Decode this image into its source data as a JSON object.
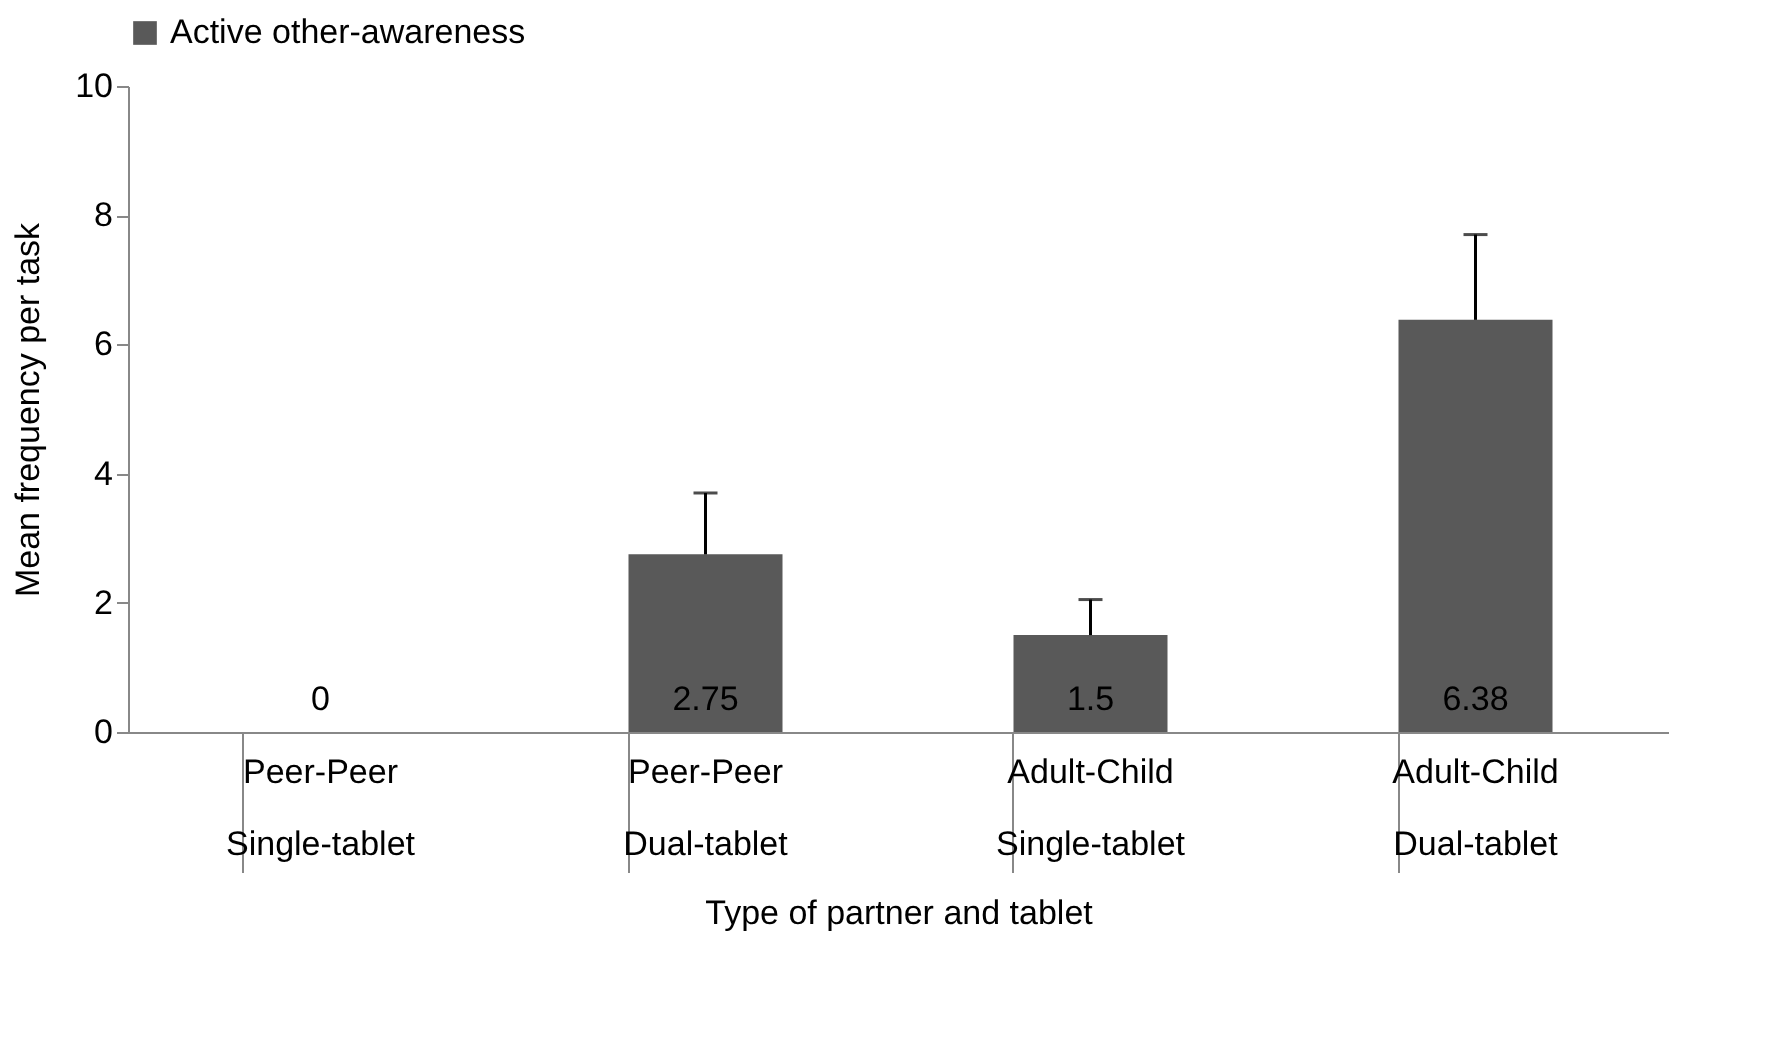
{
  "chart_data": {
    "type": "bar",
    "xlabel": "Type of partner and tablet",
    "ylabel": "Mean frequency per task",
    "categories": [
      "Peer-Peer\nSingle-tablet",
      "Peer-Peer\nDual-tablet",
      "Adult-Child\nSingle-tablet",
      "Adult-Child\nDual-tablet"
    ],
    "series": [
      {
        "name": "Active other-awareness",
        "color": "#595959",
        "values": [
          0,
          2.75,
          1.5,
          6.38
        ],
        "errors": [
          null,
          [
            2.75,
            3.7
          ],
          [
            1.5,
            2.05
          ],
          [
            6.38,
            7.7
          ]
        ]
      }
    ],
    "ylim": [
      0,
      10
    ],
    "yticks": [
      0,
      2,
      4,
      6,
      8,
      10
    ],
    "data_labels": true,
    "legend": "top",
    "grid": false
  }
}
